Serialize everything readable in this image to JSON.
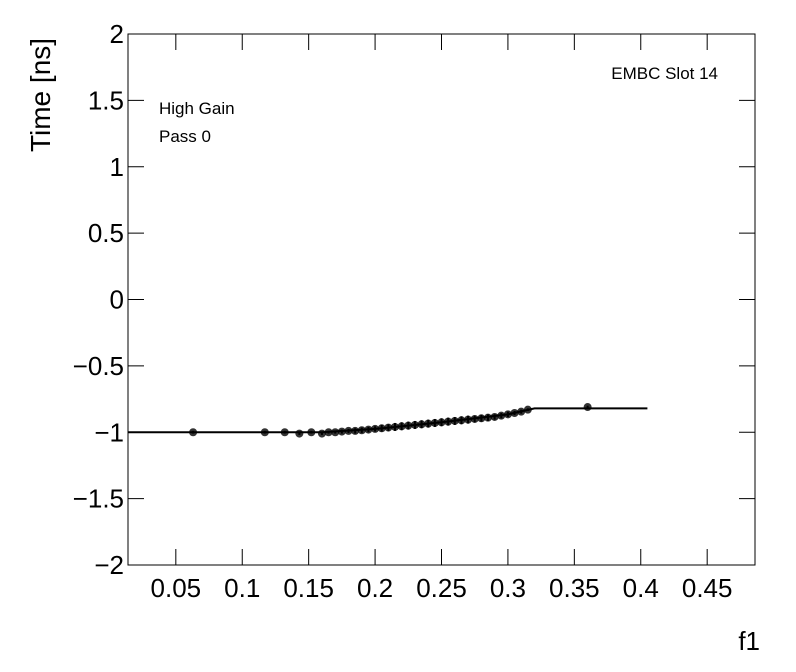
{
  "chart_data": {
    "type": "scatter",
    "xlabel": "f1",
    "ylabel": "Time [ns]",
    "annotations": [
      "EMBC Slot 14",
      "High Gain",
      "Pass 0"
    ],
    "xlim": [
      0.014,
      0.486
    ],
    "ylim": [
      -2,
      2
    ],
    "xticks": [
      0.05,
      0.1,
      0.15,
      0.2,
      0.25,
      0.3,
      0.35,
      0.4,
      0.45
    ],
    "yticks": [
      {
        "value": -2,
        "label": "−2"
      },
      {
        "value": -1.5,
        "label": "−1.5"
      },
      {
        "value": -1,
        "label": "−1"
      },
      {
        "value": -0.5,
        "label": "−0.5"
      },
      0,
      0.5,
      1,
      1.5,
      2
    ],
    "series": [
      {
        "color": "#000000",
        "x": [
          0.063,
          0.117,
          0.132,
          0.143,
          0.152,
          0.16,
          0.165,
          0.17,
          0.175,
          0.18,
          0.185,
          0.19,
          0.195,
          0.2,
          0.205,
          0.21,
          0.215,
          0.22,
          0.225,
          0.23,
          0.235,
          0.24,
          0.245,
          0.25,
          0.255,
          0.26,
          0.265,
          0.27,
          0.275,
          0.28,
          0.285,
          0.29,
          0.295,
          0.3,
          0.305,
          0.31,
          0.315,
          0.36
        ],
        "values": [
          -1.0,
          -1.0,
          -1.0,
          -1.01,
          -1.0,
          -1.01,
          -1.0,
          -1.0,
          -0.995,
          -0.99,
          -0.99,
          -0.985,
          -0.98,
          -0.975,
          -0.97,
          -0.965,
          -0.96,
          -0.955,
          -0.95,
          -0.945,
          -0.94,
          -0.935,
          -0.93,
          -0.925,
          -0.92,
          -0.915,
          -0.91,
          -0.905,
          -0.9,
          -0.895,
          -0.89,
          -0.885,
          -0.875,
          -0.865,
          -0.855,
          -0.845,
          -0.83,
          -0.81
        ],
        "errors": [
          0.01,
          0.01,
          0.01,
          0.01,
          0.01,
          0.01,
          0.01,
          0.01,
          0.015,
          0.015,
          0.02,
          0.02,
          0.02,
          0.02,
          0.025,
          0.025,
          0.03,
          0.03,
          0.03,
          0.03,
          0.03,
          0.03,
          0.03,
          0.03,
          0.03,
          0.03,
          0.03,
          0.03,
          0.025,
          0.025,
          0.025,
          0.02,
          0.02,
          0.02,
          0.015,
          0.015,
          0.01,
          0.01
        ]
      },
      {
        "type": "line",
        "color": "#000000",
        "x": [
          0.014,
          0.16,
          0.2,
          0.25,
          0.3,
          0.32,
          0.405
        ],
        "values": [
          -1.0,
          -1.0,
          -0.975,
          -0.925,
          -0.865,
          -0.82,
          -0.82
        ]
      }
    ]
  }
}
